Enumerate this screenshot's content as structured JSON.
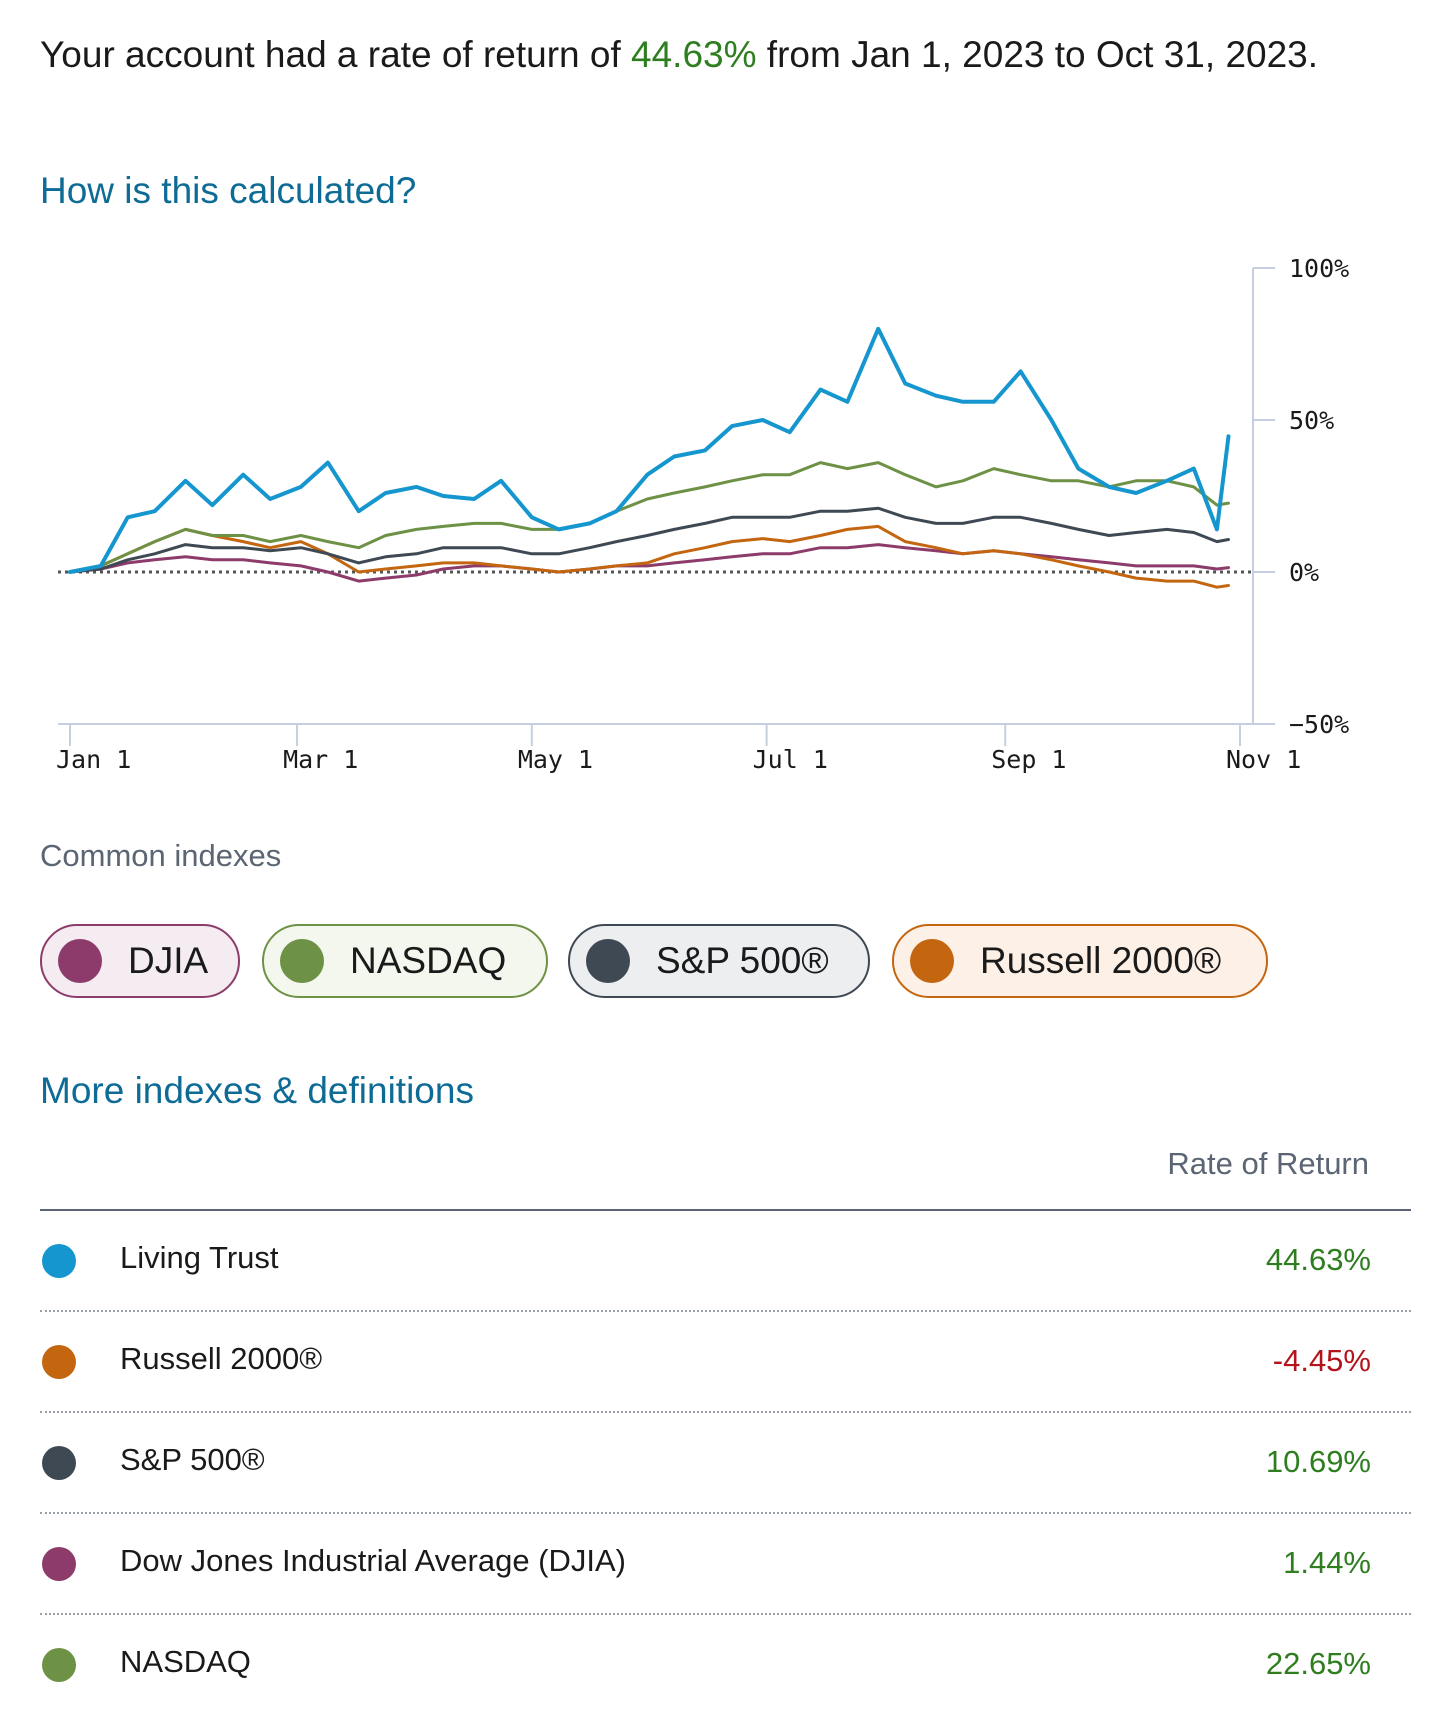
{
  "summary": {
    "prefix": "Your account had a rate of return of ",
    "rate": "44.63%",
    "suffix": " from Jan 1, 2023 to Oct 31, 2023."
  },
  "calc_link": "How is this calculated?",
  "colors": {
    "living_trust": "#1696cf",
    "nasdaq": "#6d9145",
    "sp500": "#3f4953",
    "russell": "#c4650f",
    "djia": "#8d3b6b",
    "positive": "#2e7d1f",
    "negative": "#b3131b",
    "link": "#0e6b96"
  },
  "chart_data": {
    "type": "line",
    "title": "",
    "xlabel": "",
    "ylabel": "",
    "x_ticks": [
      {
        "label": "Jan 1",
        "day": 0
      },
      {
        "label": "Mar 1",
        "day": 59
      },
      {
        "label": "May 1",
        "day": 120
      },
      {
        "label": "Jul 1",
        "day": 181
      },
      {
        "label": "Sep 1",
        "day": 243
      },
      {
        "label": "Nov 1",
        "day": 304
      }
    ],
    "y_ticks": [
      {
        "label": "100%",
        "value": 100
      },
      {
        "label": "50%",
        "value": 50
      },
      {
        "label": "0%",
        "value": 0
      },
      {
        "label": "−50%",
        "value": -50
      }
    ],
    "ylim": [
      -50,
      100
    ],
    "xlim": [
      0,
      304
    ],
    "zero_line": true,
    "x": [
      0,
      8,
      15,
      22,
      30,
      37,
      45,
      52,
      60,
      67,
      75,
      82,
      90,
      97,
      105,
      112,
      120,
      127,
      135,
      142,
      150,
      157,
      165,
      172,
      180,
      187,
      195,
      202,
      210,
      217,
      225,
      232,
      240,
      247,
      255,
      262,
      270,
      277,
      285,
      292,
      298,
      301
    ],
    "series": [
      {
        "name": "Living Trust",
        "color": "#1696cf",
        "width": 4,
        "values": [
          0,
          2,
          18,
          20,
          30,
          22,
          32,
          24,
          28,
          36,
          20,
          26,
          28,
          25,
          24,
          30,
          18,
          14,
          16,
          20,
          32,
          38,
          40,
          48,
          50,
          46,
          60,
          56,
          80,
          62,
          58,
          56,
          56,
          66,
          50,
          34,
          28,
          26,
          30,
          34,
          14,
          44.63
        ]
      },
      {
        "name": "NASDAQ",
        "color": "#6d9145",
        "width": 3,
        "values": [
          0,
          2,
          6,
          10,
          14,
          12,
          12,
          10,
          12,
          10,
          8,
          12,
          14,
          15,
          16,
          16,
          14,
          14,
          16,
          20,
          24,
          26,
          28,
          30,
          32,
          32,
          36,
          34,
          36,
          32,
          28,
          30,
          34,
          32,
          30,
          30,
          28,
          30,
          30,
          28,
          22,
          22.65
        ]
      },
      {
        "name": "S&P 500®",
        "color": "#3f4953",
        "width": 3,
        "values": [
          0,
          1,
          4,
          6,
          9,
          8,
          8,
          7,
          8,
          6,
          3,
          5,
          6,
          8,
          8,
          8,
          6,
          6,
          8,
          10,
          12,
          14,
          16,
          18,
          18,
          18,
          20,
          20,
          21,
          18,
          16,
          16,
          18,
          18,
          16,
          14,
          12,
          13,
          14,
          13,
          10,
          10.69
        ]
      },
      {
        "name": "Russell 2000®",
        "color": "#c4650f",
        "width": 3,
        "values": [
          0,
          2,
          6,
          10,
          14,
          12,
          10,
          8,
          10,
          6,
          0,
          1,
          2,
          3,
          3,
          2,
          1,
          0,
          1,
          2,
          3,
          6,
          8,
          10,
          11,
          10,
          12,
          14,
          15,
          10,
          8,
          6,
          7,
          6,
          4,
          2,
          0,
          -2,
          -3,
          -3,
          -5,
          -4.45
        ]
      },
      {
        "name": "Dow Jones Industrial Average (DJIA)",
        "color": "#8d3b6b",
        "width": 3,
        "values": [
          0,
          1,
          3,
          4,
          5,
          4,
          4,
          3,
          2,
          0,
          -3,
          -2,
          -1,
          1,
          2,
          2,
          1,
          0,
          1,
          2,
          2,
          3,
          4,
          5,
          6,
          6,
          8,
          8,
          9,
          8,
          7,
          6,
          7,
          6,
          5,
          4,
          3,
          2,
          2,
          2,
          1,
          1.44
        ]
      }
    ]
  },
  "common_indexes": {
    "label": "Common indexes",
    "chips": [
      {
        "label": "DJIA",
        "color": "#8d3b6b"
      },
      {
        "label": "NASDAQ",
        "color": "#6d9145"
      },
      {
        "label": "S&P 500®",
        "color": "#3f4953"
      },
      {
        "label": "Russell 2000®",
        "color": "#c4650f"
      }
    ]
  },
  "more_link": "More indexes & definitions",
  "table": {
    "header": "Rate of Return",
    "rows": [
      {
        "name": "Living Trust",
        "value": "44.63%",
        "color": "#1696cf"
      },
      {
        "name": "Russell 2000®",
        "value": "-4.45%",
        "color": "#c4650f"
      },
      {
        "name": "S&P 500®",
        "value": "10.69%",
        "color": "#3f4953"
      },
      {
        "name": "Dow Jones Industrial Average (DJIA)",
        "value": "1.44%",
        "color": "#8d3b6b"
      },
      {
        "name": "NASDAQ",
        "value": "22.65%",
        "color": "#6d9145"
      }
    ]
  }
}
